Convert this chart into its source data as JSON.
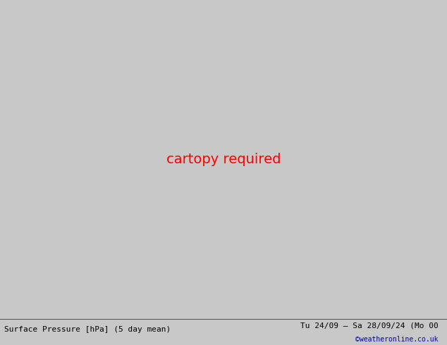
{
  "title_left": "Surface Pressure [hPa] (5 day mean)",
  "title_right": "Tu 24/09 – Sa 28/09/24 (Mo 00",
  "credit": "©weatheronline.co.uk",
  "bg_color": "#dcdcdc",
  "land_color": "#c8f0b8",
  "coast_color": "#888888",
  "blue_isobar": "#2222cc",
  "black_isobar": "#000000",
  "footer_bg": "#c8c8c8",
  "label_fs": 7.5,
  "footer_fs": 8.0,
  "credit_color": "#0000bb",
  "map_lon_min": -16.0,
  "map_lon_max": 20.0,
  "map_lat_min": 43.5,
  "map_lat_max": 66.0
}
